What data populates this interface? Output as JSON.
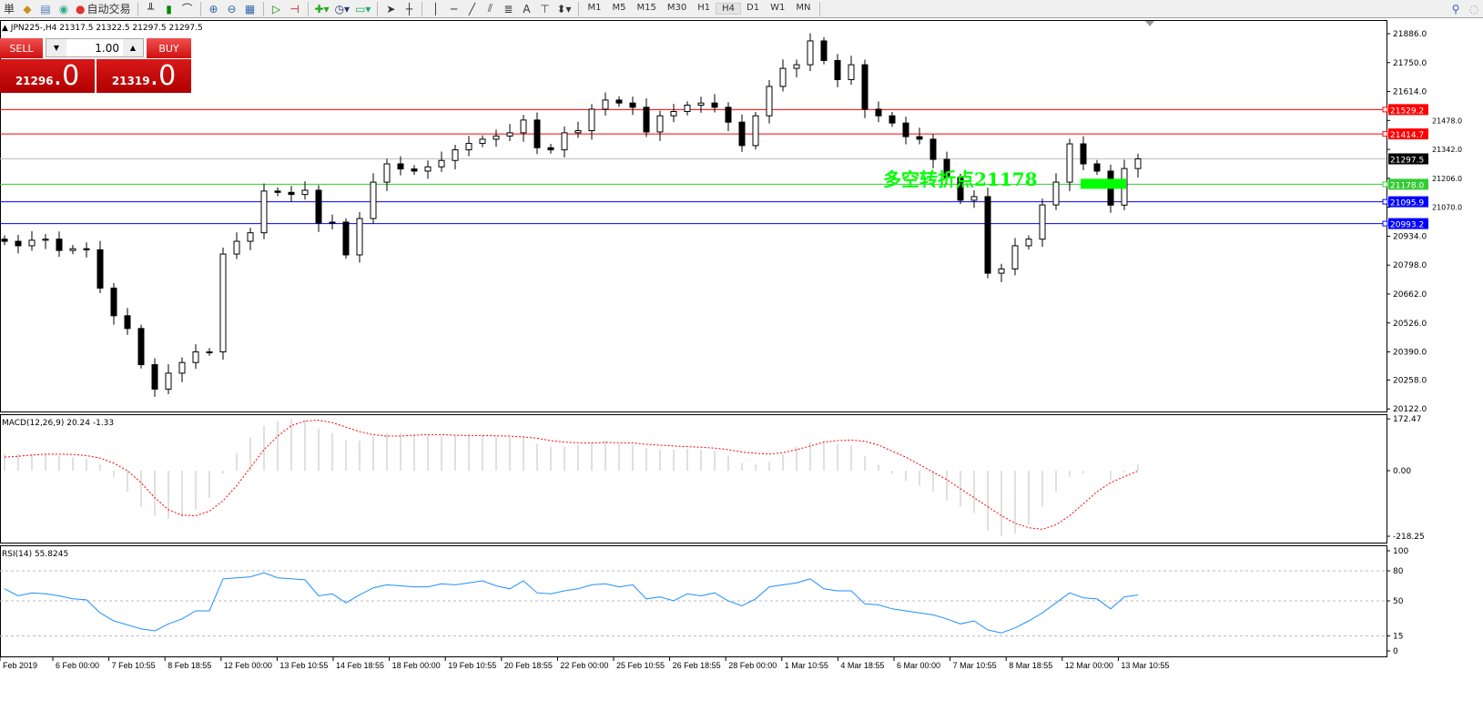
{
  "toolbar": {
    "menu_partial": "単",
    "auto_trading": "自动交易",
    "timeframes": [
      "M1",
      "M5",
      "M15",
      "M30",
      "H1",
      "H4",
      "D1",
      "W1",
      "MN"
    ],
    "active_timeframe": "H4",
    "text_tool": "A"
  },
  "symbol_info": "JPN225-,H4  21317.5 21322.5 21297.5 21297.5",
  "trade_panel": {
    "sell_label": "SELL",
    "buy_label": "BUY",
    "lot": "1.00",
    "sell_main": "21296",
    "sell_big": ".0",
    "buy_main": "21319",
    "buy_big": ".0",
    "color": "#d01010"
  },
  "annotation": {
    "text": "多空转折点21178",
    "color": "#00ff00"
  },
  "chart_data": [
    {
      "type": "candlestick",
      "title": "JPN225-,H4",
      "ylim": [
        20122,
        21886
      ],
      "yticks": [
        "21886.0",
        "21750.0",
        "21614.0",
        "21478.0",
        "21342.0",
        "21206.0",
        "21070.0",
        "20934.0",
        "20798.0",
        "20662.0",
        "20526.0",
        "20390.0",
        "20258.0",
        "20122.0"
      ],
      "xticks": [
        "Feb 2019",
        "6 Feb 00:00",
        "7 Feb 10:55",
        "8 Feb 18:55",
        "12 Feb 00:00",
        "13 Feb 10:55",
        "14 Feb 18:55",
        "18 Feb 00:00",
        "19 Feb 10:55",
        "20 Feb 18:55",
        "22 Feb 00:00",
        "25 Feb 10:55",
        "26 Feb 18:55",
        "28 Feb 00:00",
        "1 Mar 10:55",
        "4 Mar 18:55",
        "6 Mar 00:00",
        "7 Mar 10:55",
        "8 Mar 18:55",
        "12 Mar 00:00",
        "13 Mar 10:55"
      ],
      "first_open": 20920,
      "close": [
        20910,
        20889,
        20915,
        20920,
        20867,
        20875,
        20870,
        20690,
        20560,
        20500,
        20330,
        20215,
        20290,
        20340,
        20390,
        20390,
        20850,
        20910,
        20950,
        21146,
        21140,
        21130,
        21150,
        20996,
        21000,
        20846,
        21017,
        21188,
        21274,
        21250,
        21240,
        21260,
        21290,
        21340,
        21370,
        21390,
        21405,
        21420,
        21480,
        21350,
        21340,
        21420,
        21430,
        21531,
        21574,
        21560,
        21540,
        21424,
        21500,
        21520,
        21550,
        21560,
        21540,
        21470,
        21360,
        21500,
        21638,
        21723,
        21740,
        21852,
        21760,
        21670,
        21740,
        21531,
        21500,
        21466,
        21402,
        21390,
        21295,
        21210,
        21103,
        21120,
        20760,
        20780,
        20889,
        20920,
        21081,
        21188,
        21368,
        21274,
        21240,
        21080,
        21252,
        21297.5
      ],
      "levels": [
        {
          "value": 21529.2,
          "label": "21529.2",
          "color": "#ff0000"
        },
        {
          "value": 21414.7,
          "label": "21414.7",
          "color": "#ff0000"
        },
        {
          "value": 21297.5,
          "label": "21297.5",
          "color": "#000000",
          "line": "#c0c0c0"
        },
        {
          "value": 21178.0,
          "label": "21178.0",
          "color": "#33cc33"
        },
        {
          "value": 21095.9,
          "label": "21095.9",
          "color": "#0000ff"
        },
        {
          "value": 20993.2,
          "label": "20993.2",
          "color": "#0000ff"
        }
      ]
    },
    {
      "type": "bar+line",
      "title": "MACD(12,26,9) 20.24 -1.33",
      "ylim": [
        -218.25,
        172.47
      ],
      "yticks": [
        "172.47",
        "0.00",
        "-218.25"
      ],
      "histogram": [
        55,
        55,
        55,
        55,
        50,
        45,
        40,
        20,
        -20,
        -70,
        -120,
        -150,
        -160,
        -155,
        -130,
        -90,
        -10,
        60,
        110,
        150,
        165,
        172,
        168,
        140,
        125,
        100,
        100,
        115,
        125,
        125,
        120,
        118,
        115,
        118,
        120,
        118,
        115,
        112,
        110,
        90,
        80,
        80,
        85,
        95,
        100,
        90,
        85,
        75,
        70,
        70,
        72,
        70,
        65,
        50,
        25,
        20,
        30,
        55,
        80,
        95,
        100,
        90,
        85,
        50,
        20,
        -10,
        -35,
        -50,
        -70,
        -100,
        -120,
        -140,
        -200,
        -218,
        -210,
        -180,
        -120,
        -70,
        -20,
        -10,
        0,
        -30,
        -5,
        20.24
      ],
      "signal": [
        45,
        48,
        52,
        55,
        55,
        54,
        50,
        42,
        25,
        0,
        -40,
        -90,
        -130,
        -148,
        -150,
        -135,
        -100,
        -50,
        10,
        70,
        115,
        150,
        165,
        168,
        160,
        145,
        130,
        120,
        115,
        115,
        118,
        120,
        120,
        118,
        117,
        117,
        116,
        115,
        112,
        108,
        100,
        95,
        93,
        92,
        94,
        93,
        92,
        88,
        85,
        82,
        80,
        78,
        75,
        70,
        62,
        58,
        55,
        60,
        70,
        82,
        95,
        100,
        102,
        98,
        85,
        65,
        45,
        20,
        -5,
        -30,
        -60,
        -90,
        -120,
        -150,
        -175,
        -190,
        -195,
        -180,
        -150,
        -110,
        -70,
        -40,
        -20,
        -1.33
      ],
      "histogram_color": "#c0c0c0",
      "signal_color": "#ff0000"
    },
    {
      "type": "line",
      "title": "RSI(14) 55.8245",
      "ylim": [
        0,
        100
      ],
      "yticks": [
        "100",
        "80",
        "50",
        "15",
        "0"
      ],
      "levels": [
        80,
        50,
        15
      ],
      "values": [
        62,
        55,
        58,
        57,
        55,
        52,
        51,
        38,
        30,
        26,
        22,
        20,
        27,
        32,
        40,
        40,
        72,
        73,
        74,
        78,
        73,
        72,
        71,
        55,
        57,
        48,
        56,
        63,
        66,
        65,
        64,
        64,
        67,
        66,
        68,
        70,
        65,
        62,
        70,
        58,
        57,
        60,
        62,
        66,
        67,
        64,
        66,
        52,
        54,
        50,
        57,
        55,
        58,
        50,
        45,
        52,
        64,
        66,
        68,
        72,
        62,
        60,
        60,
        47,
        46,
        42,
        40,
        38,
        36,
        32,
        27,
        30,
        21,
        18,
        23,
        30,
        38,
        48,
        58,
        53,
        52,
        42,
        54,
        55.8245
      ],
      "color": "#1e90ff"
    }
  ]
}
